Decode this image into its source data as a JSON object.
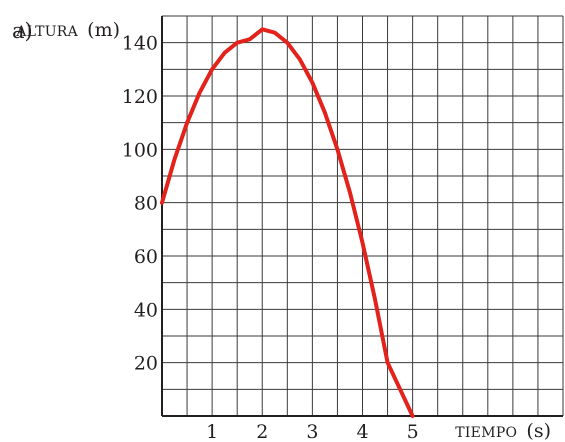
{
  "part_label": "a)",
  "chart_data": {
    "type": "line",
    "ylabel_word": "ALTURA",
    "ylabel_unit": "(m)",
    "xlabel_word": "TIEMPO",
    "xlabel_unit": "(s)",
    "xlim": [
      0,
      8
    ],
    "ylim": [
      0,
      150
    ],
    "x_grid_step": 0.5,
    "y_grid_step": 10,
    "x_tick_values": [
      1,
      2,
      3,
      4,
      5
    ],
    "x_tick_labels": [
      "1",
      "2",
      "3",
      "4",
      "5"
    ],
    "y_tick_values": [
      20,
      40,
      60,
      80,
      100,
      120,
      140
    ],
    "y_tick_labels": [
      "20",
      "40",
      "60",
      "80",
      "100",
      "120",
      "140"
    ],
    "grid": true,
    "series": [
      {
        "color": "#e3221c",
        "x": [
          0,
          0.25,
          0.5,
          0.75,
          1,
          1.25,
          1.5,
          1.75,
          2,
          2.25,
          2.5,
          2.75,
          3,
          3.25,
          3.5,
          3.75,
          4,
          4.25,
          4.5,
          4.75,
          5
        ],
        "y": [
          80,
          96.25,
          110,
          121.25,
          130,
          136.25,
          140,
          141.25,
          145,
          143.75,
          140,
          133.75,
          125,
          113.75,
          100,
          83.75,
          65,
          43.75,
          20,
          10,
          0
        ]
      }
    ]
  }
}
